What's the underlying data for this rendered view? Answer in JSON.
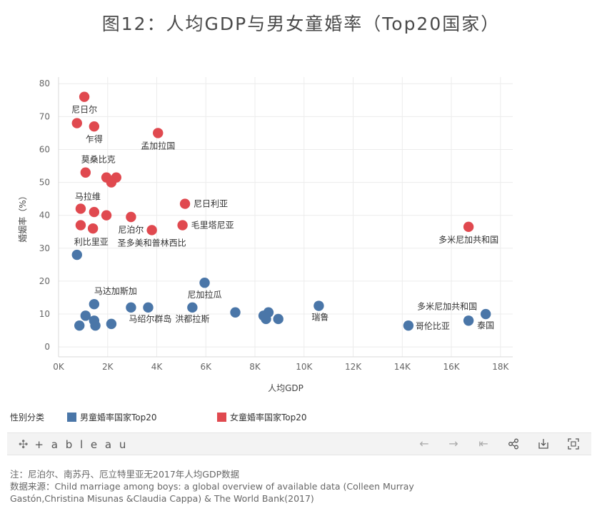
{
  "title": "图12：人均GDP与男女童婚率（Top20国家）",
  "legend": {
    "heading": "性别分类",
    "items": [
      {
        "label": "男童婚率国家Top20",
        "color": "#4a76a8"
      },
      {
        "label": "女童婚率国家Top20",
        "color": "#e0494f"
      }
    ]
  },
  "toolbar": {
    "logo": "+ a b l e a u",
    "icons": [
      "undo-icon",
      "redo-icon",
      "revert-icon",
      "share-icon",
      "download-icon",
      "fullscreen-icon"
    ]
  },
  "footer": {
    "note": "注：尼泊尔、南苏丹、厄立特里亚无2017年人均GDP数据",
    "source_line1": "数据来源：Child marriage among boys: a global overview of available data (Colleen Murray",
    "source_line2": "Gastón,Christina Misunas &Claudia Cappa) & The World Bank(2017)"
  },
  "chart_data": {
    "type": "scatter",
    "xlabel": "人均GDP",
    "ylabel": "婚姻率（%）",
    "xlim": [
      0,
      18500
    ],
    "ylim": [
      -3,
      82
    ],
    "xticks": [
      {
        "v": 0,
        "label": "0K"
      },
      {
        "v": 2000,
        "label": "2K"
      },
      {
        "v": 4000,
        "label": "4K"
      },
      {
        "v": 6000,
        "label": "6K"
      },
      {
        "v": 8000,
        "label": "8K"
      },
      {
        "v": 10000,
        "label": "10K"
      },
      {
        "v": 12000,
        "label": "12K"
      },
      {
        "v": 14000,
        "label": "14K"
      },
      {
        "v": 16000,
        "label": "16K"
      },
      {
        "v": 18000,
        "label": "18K"
      }
    ],
    "yticks": [
      0,
      10,
      20,
      30,
      40,
      50,
      60,
      70,
      80
    ],
    "series": [
      {
        "name": "女童婚率国家Top20",
        "color": "#e0494f",
        "points": [
          {
            "x": 1050,
            "y": 76,
            "label": "尼日尔"
          },
          {
            "x": 750,
            "y": 68,
            "label": ""
          },
          {
            "x": 1450,
            "y": 67,
            "label": "乍得"
          },
          {
            "x": 4050,
            "y": 65,
            "label": "孟加拉国"
          },
          {
            "x": 1100,
            "y": 53,
            "label": "莫桑比克"
          },
          {
            "x": 1950,
            "y": 51.5,
            "label": ""
          },
          {
            "x": 2350,
            "y": 51.5,
            "label": ""
          },
          {
            "x": 2150,
            "y": 50,
            "label": ""
          },
          {
            "x": 900,
            "y": 42,
            "label": "马拉维"
          },
          {
            "x": 1450,
            "y": 41,
            "label": ""
          },
          {
            "x": 1950,
            "y": 40,
            "label": ""
          },
          {
            "x": 5150,
            "y": 43.5,
            "label": "尼日利亚"
          },
          {
            "x": 2950,
            "y": 39.5,
            "label": "尼泊尔"
          },
          {
            "x": 900,
            "y": 37,
            "label": ""
          },
          {
            "x": 1400,
            "y": 36,
            "label": ""
          },
          {
            "x": 3800,
            "y": 35.5,
            "label": "圣多美和普林西比"
          },
          {
            "x": 5050,
            "y": 37,
            "label": "毛里塔尼亚"
          },
          {
            "x": 16700,
            "y": 36.5,
            "label": "多米尼加共和国"
          }
        ]
      },
      {
        "name": "男童婚率国家Top20",
        "color": "#4a76a8",
        "points": [
          {
            "x": 750,
            "y": 28,
            "label": "利比里亚"
          },
          {
            "x": 1450,
            "y": 13,
            "label": "马达加斯加"
          },
          {
            "x": 1100,
            "y": 9.5,
            "label": ""
          },
          {
            "x": 1450,
            "y": 8,
            "label": ""
          },
          {
            "x": 850,
            "y": 6.5,
            "label": ""
          },
          {
            "x": 1500,
            "y": 6.5,
            "label": ""
          },
          {
            "x": 2150,
            "y": 7,
            "label": ""
          },
          {
            "x": 2950,
            "y": 12,
            "label": "马绍尔群岛"
          },
          {
            "x": 3650,
            "y": 12,
            "label": ""
          },
          {
            "x": 5450,
            "y": 12,
            "label": "洪都拉斯"
          },
          {
            "x": 5950,
            "y": 19.5,
            "label": "尼加拉瓜"
          },
          {
            "x": 7200,
            "y": 10.5,
            "label": ""
          },
          {
            "x": 8350,
            "y": 9.5,
            "label": ""
          },
          {
            "x": 8550,
            "y": 10.5,
            "label": ""
          },
          {
            "x": 8450,
            "y": 8.5,
            "label": ""
          },
          {
            "x": 8950,
            "y": 8.5,
            "label": ""
          },
          {
            "x": 10600,
            "y": 12.5,
            "label": "瑞鲁"
          },
          {
            "x": 14250,
            "y": 6.5,
            "label": "哥伦比亚"
          },
          {
            "x": 16700,
            "y": 8,
            "label": "多米尼加共和国"
          },
          {
            "x": 17400,
            "y": 10,
            "label": "泰国"
          }
        ]
      }
    ]
  }
}
